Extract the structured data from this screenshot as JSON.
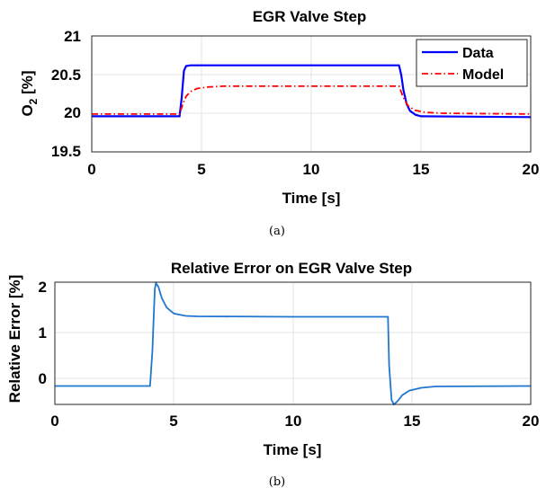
{
  "chart_data": [
    {
      "type": "line",
      "title": "EGR Valve Step",
      "xlabel": "Time [s]",
      "ylabel": {
        "base": "O",
        "sub": "2",
        "rest": " [%]"
      },
      "xlim": [
        0,
        20
      ],
      "ylim": [
        19.5,
        21
      ],
      "xticks": [
        "0",
        "5",
        "10",
        "15",
        "20"
      ],
      "yticks": [
        "19.5",
        "20",
        "20.5",
        "21"
      ],
      "grid": true,
      "legend_position": "top-right",
      "caption": "(a)",
      "series": [
        {
          "name": "Data",
          "color": "#0000ff",
          "style": "solid",
          "points": [
            [
              0,
              19.96
            ],
            [
              4.0,
              19.96
            ],
            [
              4.1,
              20.2
            ],
            [
              4.2,
              20.55
            ],
            [
              4.3,
              20.61
            ],
            [
              4.5,
              20.62
            ],
            [
              14.0,
              20.62
            ],
            [
              14.1,
              20.5
            ],
            [
              14.2,
              20.3
            ],
            [
              14.35,
              20.12
            ],
            [
              14.5,
              20.03
            ],
            [
              14.75,
              19.98
            ],
            [
              15.0,
              19.96
            ],
            [
              20,
              19.95
            ]
          ]
        },
        {
          "name": "Model",
          "color": "#ff0000",
          "style": "dashdot",
          "points": [
            [
              0,
              19.99
            ],
            [
              4.0,
              19.99
            ],
            [
              4.15,
              20.12
            ],
            [
              4.3,
              20.22
            ],
            [
              4.5,
              20.28
            ],
            [
              4.8,
              20.32
            ],
            [
              5.3,
              20.34
            ],
            [
              6.0,
              20.35
            ],
            [
              14.0,
              20.35
            ],
            [
              14.2,
              20.2
            ],
            [
              14.4,
              20.1
            ],
            [
              14.7,
              20.04
            ],
            [
              15.2,
              20.01
            ],
            [
              16.0,
              20.0
            ],
            [
              20,
              19.99
            ]
          ]
        }
      ]
    },
    {
      "type": "line",
      "title": "Relative Error on EGR Valve Step",
      "xlabel": "Time [s]",
      "ylabel": "Relative Error [%]",
      "xlim": [
        0,
        20
      ],
      "ylim": [
        -0.55,
        2.1
      ],
      "xticks": [
        "0",
        "5",
        "10",
        "15",
        "20"
      ],
      "yticks": [
        "0",
        "1",
        "2"
      ],
      "grid": true,
      "caption": "(b)",
      "series": [
        {
          "color": "#1f77d0",
          "style": "solid",
          "points": [
            [
              0,
              -0.15
            ],
            [
              4.0,
              -0.15
            ],
            [
              4.1,
              0.6
            ],
            [
              4.2,
              1.95
            ],
            [
              4.25,
              2.08
            ],
            [
              4.35,
              2.0
            ],
            [
              4.5,
              1.75
            ],
            [
              4.7,
              1.55
            ],
            [
              5.0,
              1.42
            ],
            [
              5.5,
              1.37
            ],
            [
              6.0,
              1.36
            ],
            [
              10.0,
              1.35
            ],
            [
              14.0,
              1.35
            ],
            [
              14.05,
              0.3
            ],
            [
              14.15,
              -0.45
            ],
            [
              14.25,
              -0.55
            ],
            [
              14.4,
              -0.48
            ],
            [
              14.6,
              -0.35
            ],
            [
              14.9,
              -0.25
            ],
            [
              15.4,
              -0.19
            ],
            [
              16.0,
              -0.16
            ],
            [
              20,
              -0.15
            ]
          ]
        }
      ]
    }
  ]
}
